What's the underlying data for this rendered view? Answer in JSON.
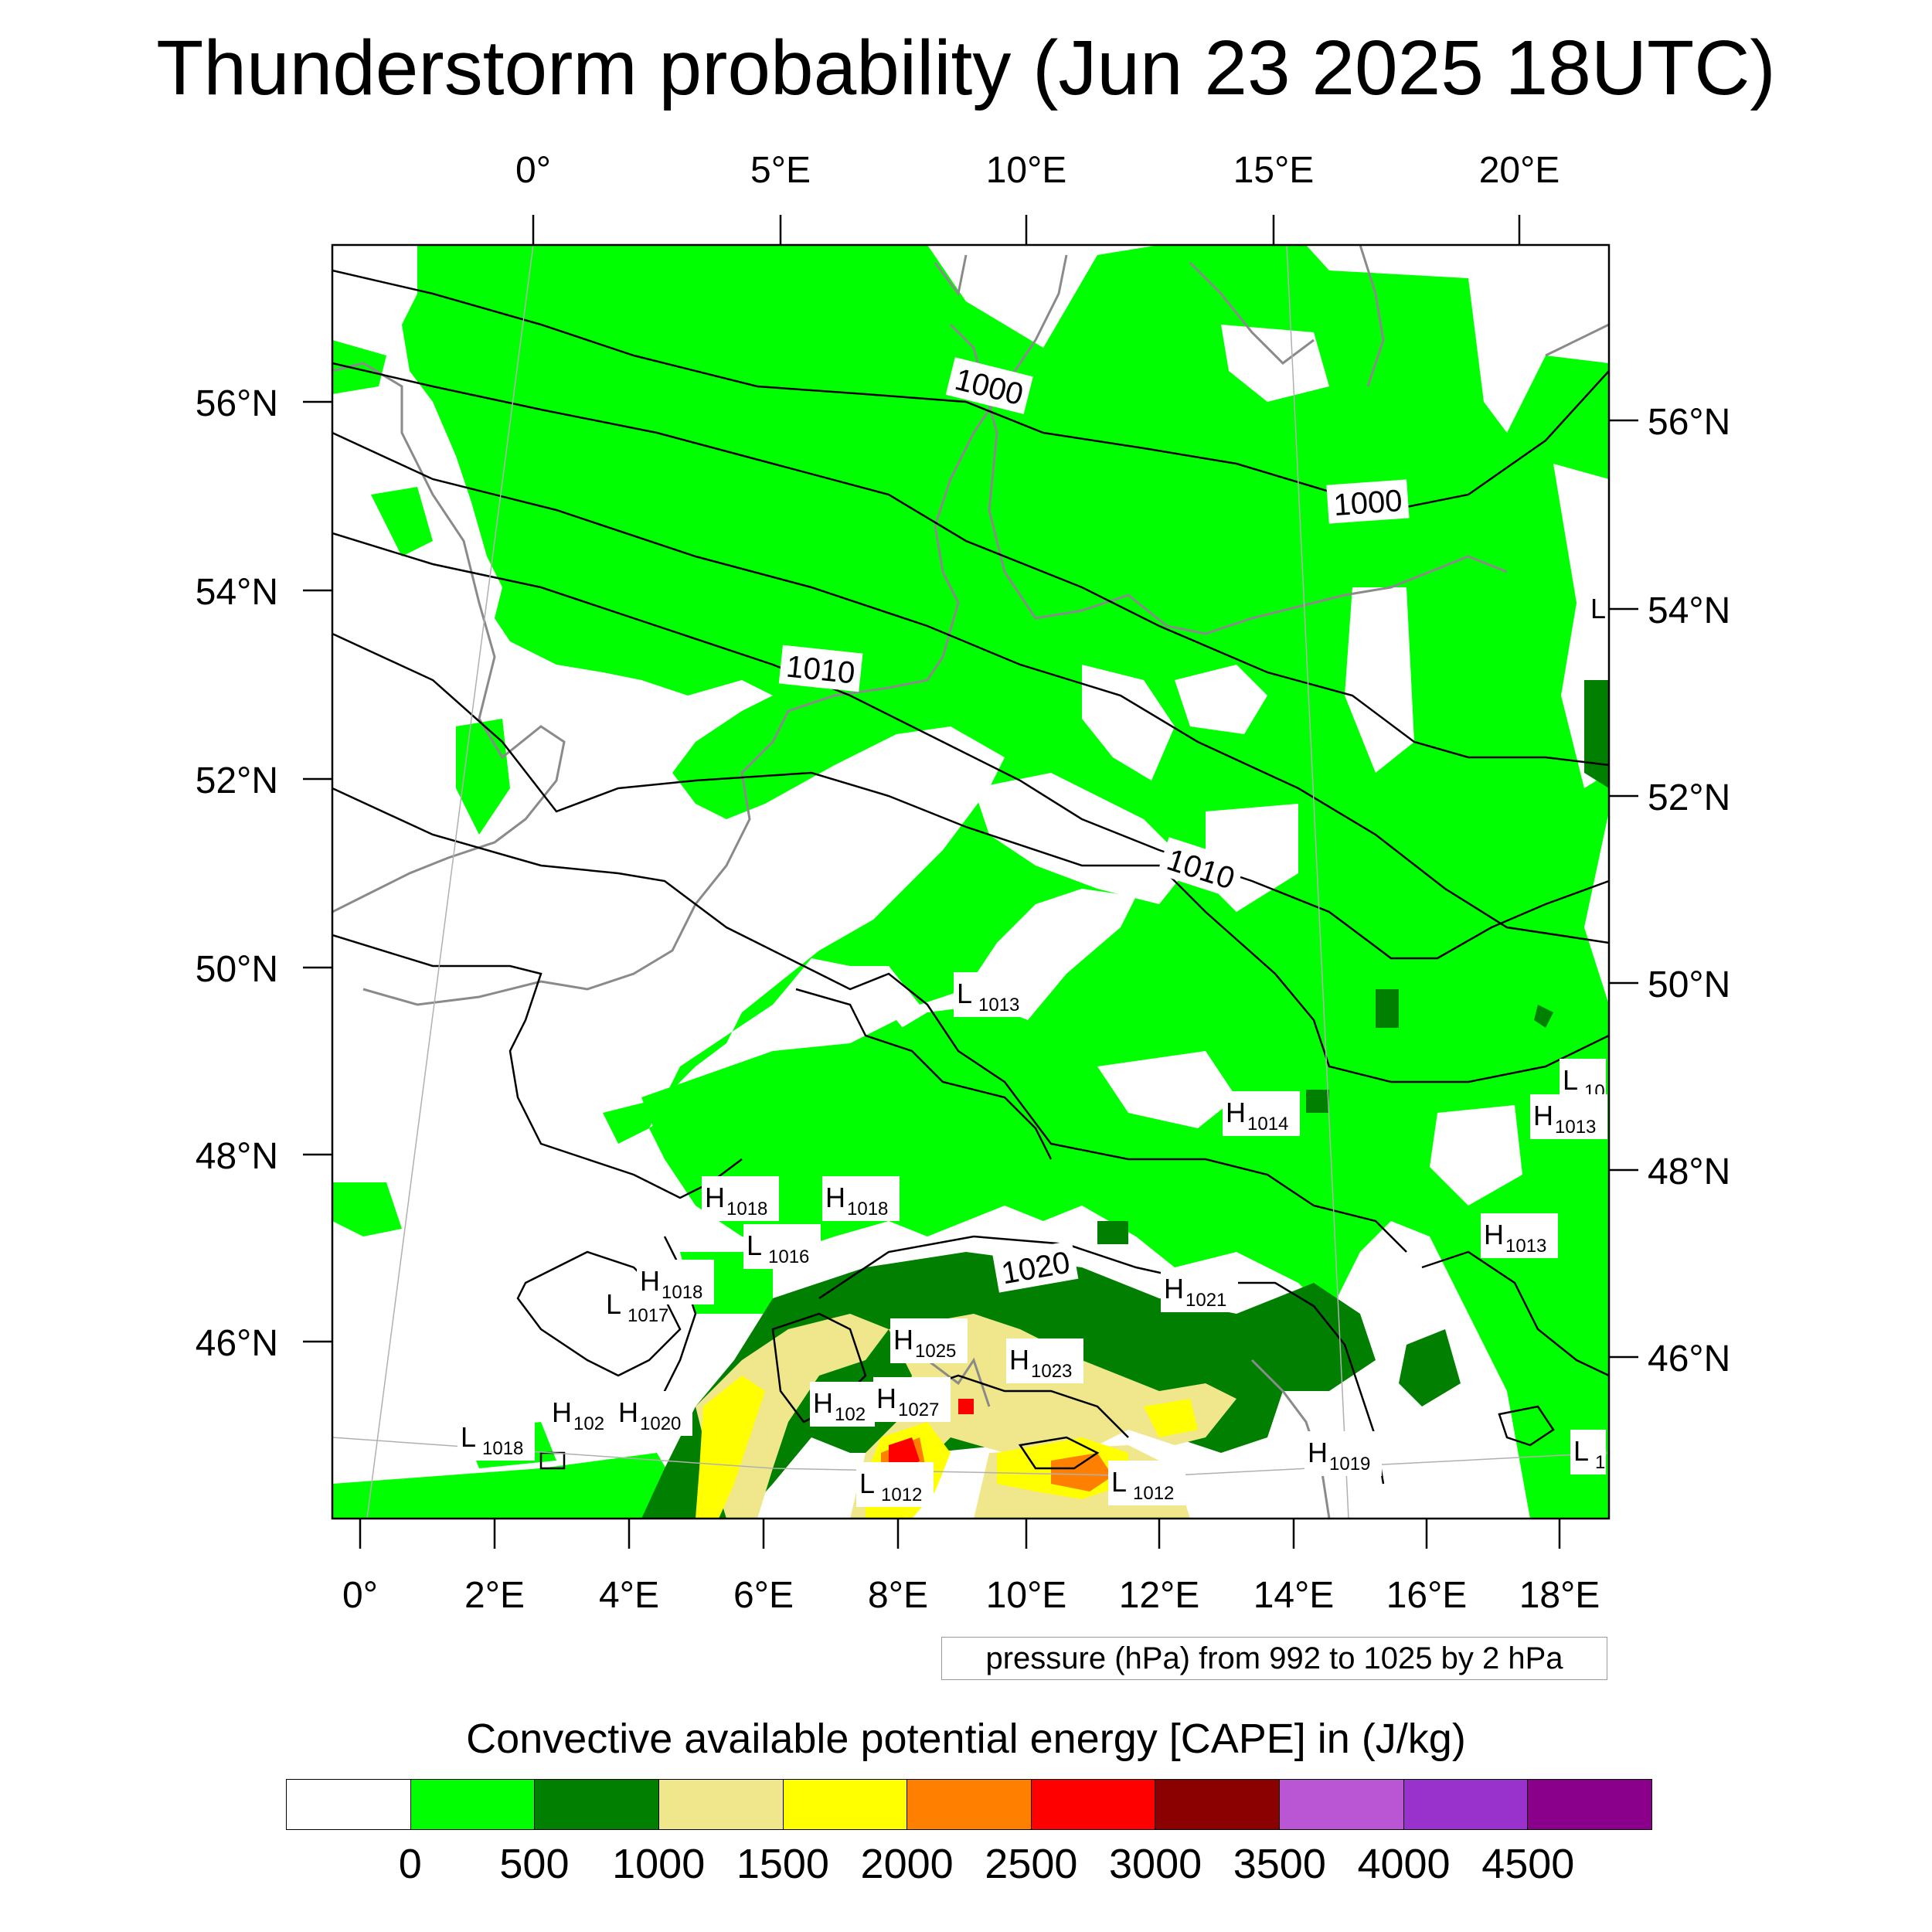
{
  "title": "Thunderstorm probability (Jun 23 2025 18UTC)",
  "map": {
    "top_lon_labels": [
      "0°",
      "5°E",
      "10°E",
      "15°E",
      "20°E"
    ],
    "bottom_lon_labels": [
      "0°",
      "2°E",
      "4°E",
      "6°E",
      "8°E",
      "10°E",
      "12°E",
      "14°E",
      "16°E",
      "18°E"
    ],
    "left_lat_labels": [
      "56°N",
      "54°N",
      "52°N",
      "50°N",
      "48°N",
      "46°N"
    ],
    "right_lat_labels": [
      "56°N",
      "54°N",
      "52°N",
      "50°N",
      "48°N",
      "46°N"
    ],
    "isobar_labels": [
      "1000",
      "1000",
      "1010",
      "1010",
      "1020"
    ],
    "pressure_centers": [
      {
        "letter": "L",
        "value": "1013"
      },
      {
        "letter": "H",
        "value": "1014"
      },
      {
        "letter": "L",
        "value": "10"
      },
      {
        "letter": "H",
        "value": "1013"
      },
      {
        "letter": "H",
        "value": "1013"
      },
      {
        "letter": "H",
        "value": "1018"
      },
      {
        "letter": "H",
        "value": "1018"
      },
      {
        "letter": "L",
        "value": "1016"
      },
      {
        "letter": "H",
        "value": "1018"
      },
      {
        "letter": "L",
        "value": "1017"
      },
      {
        "letter": "H",
        "value": "1021"
      },
      {
        "letter": "H",
        "value": "1025"
      },
      {
        "letter": "H",
        "value": "1023"
      },
      {
        "letter": "H",
        "value": "102"
      },
      {
        "letter": "H",
        "value": "1027"
      },
      {
        "letter": "H",
        "value": "102"
      },
      {
        "letter": "H",
        "value": "1020"
      },
      {
        "letter": "L",
        "value": "1018"
      },
      {
        "letter": "L",
        "value": "1012"
      },
      {
        "letter": "L",
        "value": "1012"
      },
      {
        "letter": "H",
        "value": "1019"
      },
      {
        "letter": "L",
        "value": "1"
      },
      {
        "letter": "L",
        "value": ""
      }
    ],
    "colors": {
      "land_outline": "#8a8a8a",
      "isobar": "#000000",
      "cape_0_500": "#00ff00",
      "cape_500_1000": "#007f00",
      "cape_1000_1500": "#f0e68c",
      "cape_1500_2000": "#ffff00",
      "cape_2000_2500": "#ff7f00",
      "cape_2500_3000": "#ff0000"
    }
  },
  "contour_info": "pressure (hPa) from 992 to 1025 by 2 hPa",
  "colorbar": {
    "title": "Convective available potential energy [CAPE] in (J/kg)",
    "colors": [
      "#ffffff",
      "#00ff00",
      "#007f00",
      "#f0e68c",
      "#ffff00",
      "#ff7f00",
      "#ff0000",
      "#8b0000",
      "#ba55d3",
      "#9932cc",
      "#8b008b"
    ],
    "labels": [
      "0",
      "500",
      "1000",
      "1500",
      "2000",
      "2500",
      "3000",
      "3500",
      "4000",
      "4500"
    ]
  }
}
